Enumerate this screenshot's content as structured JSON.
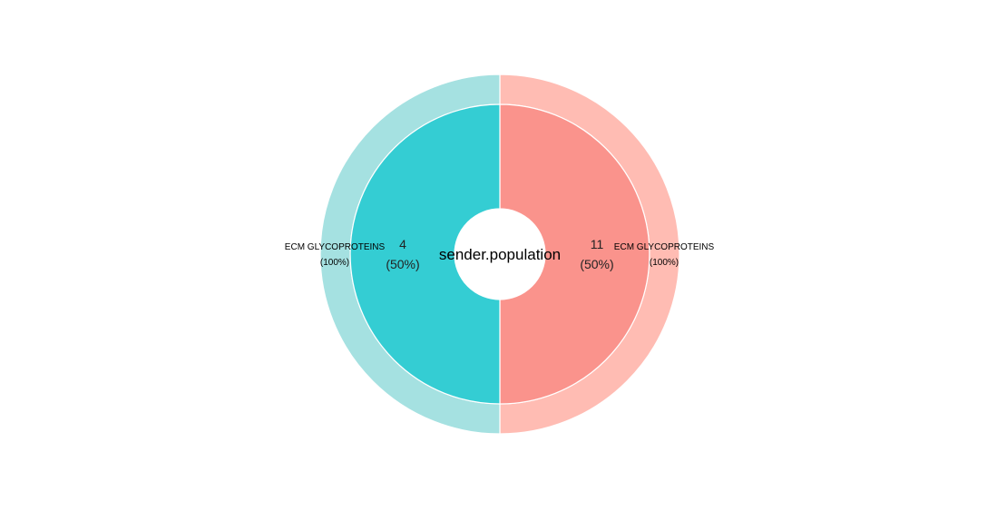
{
  "chart_data": {
    "type": "pie",
    "subtype": "sunburst-donut",
    "center_label": "sender.population",
    "inner_ring": [
      {
        "label": "11",
        "percent_label": "(50%)",
        "value": 50,
        "color": "#FA938C"
      },
      {
        "label": "4",
        "percent_label": "(50%)",
        "value": 50,
        "color": "#34CDD3"
      }
    ],
    "outer_ring": [
      {
        "label": "ECM GLYCOPROTEINS",
        "percent_label": "(100%)",
        "parent": "11",
        "value": 50,
        "color": "#FFBCB3"
      },
      {
        "label": "ECM GLYCOPROTEINS",
        "percent_label": "(100%)",
        "parent": "4",
        "value": 50,
        "color": "#A5E1E1"
      }
    ]
  }
}
